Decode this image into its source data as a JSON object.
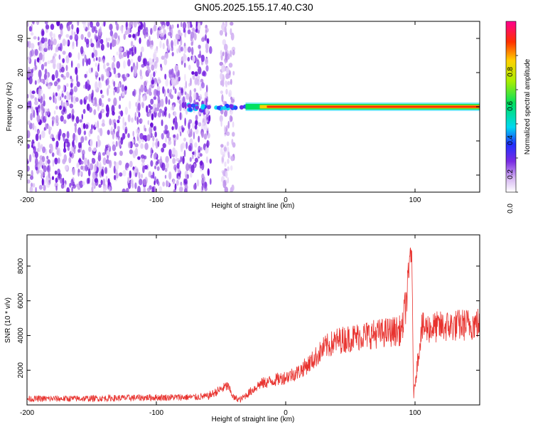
{
  "title": "GN05.2025.155.17.40.C30",
  "chart_data": [
    {
      "type": "heatmap",
      "xlabel": "Height of straight line (km)",
      "ylabel": "Frequency (Hz)",
      "xlim": [
        -200,
        150
      ],
      "ylim": [
        -50,
        50
      ],
      "xticks": [
        -200,
        -100,
        0,
        100
      ],
      "xtick_labels": [
        "-200",
        "-100",
        "0",
        "100"
      ],
      "yticks": [
        -40,
        -20,
        0,
        20,
        40
      ],
      "ytick_labels": [
        "-40",
        "-20",
        "0",
        "20",
        "40"
      ],
      "colorbar": {
        "label": "Normalized spectral amplitude",
        "range": [
          0,
          1
        ],
        "ticks": [
          0.0,
          0.2,
          0.4,
          0.6,
          0.8
        ],
        "tick_labels": [
          "0.0",
          "0.2",
          "0.4",
          "0.6",
          "0.8"
        ]
      },
      "regions": [
        {
          "x_range": [
            -200,
            -58
          ],
          "description": "broadband low-amplitude noise, 0.1–0.3"
        },
        {
          "x_range": [
            -50,
            -40
          ],
          "description": "sparse low-amplitude noise"
        },
        {
          "x_range": [
            -75,
            150
          ],
          "frequency_hz": 0,
          "peak_amplitude": 0.9
        }
      ],
      "grid": false
    },
    {
      "type": "line",
      "xlabel": "Height of straight line (km)",
      "ylabel": "SNR (10 * v/v)",
      "xlim": [
        -200,
        150
      ],
      "ylim": [
        0,
        9800
      ],
      "xticks": [
        -200,
        -100,
        0,
        100
      ],
      "xtick_labels": [
        "-200",
        "-100",
        "0",
        "100"
      ],
      "yticks": [
        2000,
        4000,
        6000,
        8000
      ],
      "ytick_labels": [
        "2000",
        "4000",
        "6000",
        "8000"
      ],
      "color": "#e8322e",
      "series": [
        {
          "x": [
            -200,
            -150,
            -110,
            -70,
            -60,
            -45,
            -40,
            -35,
            -20,
            0,
            10,
            20,
            30,
            40,
            60,
            80,
            90,
            95,
            97,
            99,
            105,
            120,
            150
          ],
          "y": [
            350,
            370,
            420,
            450,
            500,
            1100,
            400,
            300,
            1200,
            1600,
            1900,
            2500,
            3300,
            3700,
            4000,
            4200,
            4300,
            7000,
            9800,
            600,
            4400,
            4500,
            4700
          ]
        }
      ],
      "grid": false
    }
  ]
}
